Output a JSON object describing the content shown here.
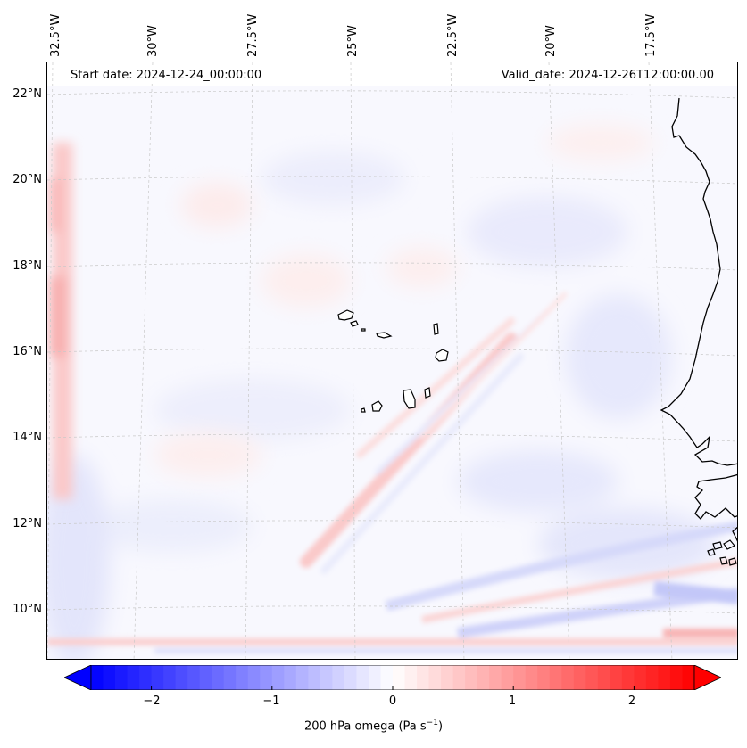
{
  "map": {
    "start_date": "Start date: 2024-12-24_00:00:00",
    "valid_date": "Valid_date: 2024-12-26T12:00:00.00",
    "lon_labels": [
      "32.5°W",
      "30°W",
      "27.5°W",
      "25°W",
      "22.5°W",
      "20°W",
      "17.5°W"
    ],
    "lat_labels": [
      "22°N",
      "20°N",
      "18°N",
      "16°N",
      "14°N",
      "12°N",
      "10°N"
    ],
    "lon_range": [
      -33.0,
      -15.0
    ],
    "lat_range": [
      9.0,
      22.7
    ],
    "features": [
      "Cape Verde islands",
      "West African coast (Senegal / Mauritania)"
    ]
  },
  "colorbar": {
    "label": "200 hPa omega (Pa s",
    "label_sup": "−1",
    "label_close": ")",
    "ticks": [
      "−2",
      "−1",
      "0",
      "1",
      "2"
    ],
    "range": [
      -2.5,
      2.5
    ],
    "cmap": "bwr",
    "low_color": "#0000ff",
    "mid_color": "#ffffff",
    "high_color": "#ff0000"
  }
}
